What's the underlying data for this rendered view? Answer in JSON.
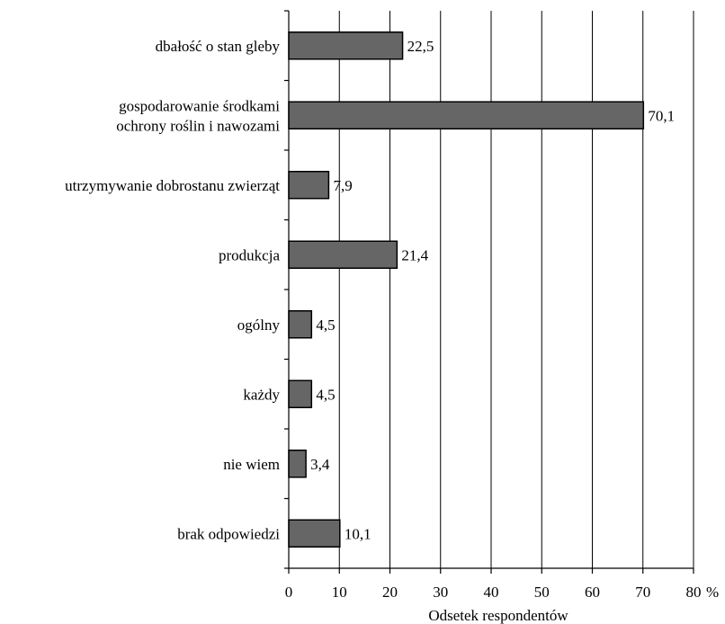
{
  "chart_data": {
    "type": "bar",
    "orientation": "horizontal",
    "categories": [
      [
        "dbałość o stan gleby"
      ],
      [
        "gospodarowanie środkami",
        "ochrony roślin i nawozami"
      ],
      [
        "utrzymywanie dobrostanu zwierząt"
      ],
      [
        "produkcja"
      ],
      [
        "ogólny"
      ],
      [
        "każdy"
      ],
      [
        "nie wiem"
      ],
      [
        "brak odpowiedzi"
      ]
    ],
    "values": [
      22.5,
      70.1,
      7.9,
      21.4,
      4.5,
      4.5,
      3.4,
      10.1
    ],
    "value_labels": [
      "22,5",
      "70,1",
      "7,9",
      "21,4",
      "4,5",
      "4,5",
      "3,4",
      "10,1"
    ],
    "xlabel": "Odsetek respondentów",
    "xunit": "%",
    "xlim": [
      0,
      80
    ],
    "xticks": [
      0,
      10,
      20,
      30,
      40,
      50,
      60,
      70,
      80
    ],
    "grid": true,
    "colors": {
      "bar": "#666666",
      "edge": "#000000"
    }
  }
}
